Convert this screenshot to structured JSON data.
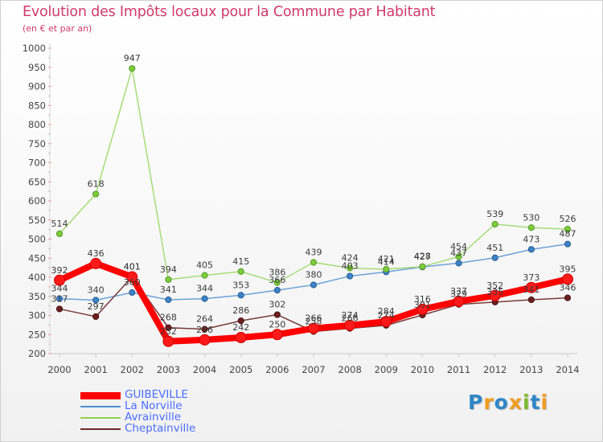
{
  "header": {
    "title": "Evolution des Impôts locaux pour la Commune par Habitant",
    "subtitle": "(en € et par an)"
  },
  "logo": {
    "text": "Proxiti",
    "letters": [
      {
        "ch": "P",
        "color": "#2e86c8"
      },
      {
        "ch": "r",
        "color": "#f29b1e"
      },
      {
        "ch": "o",
        "color": "#2e86c8"
      },
      {
        "ch": "x",
        "color": "#f29b1e"
      },
      {
        "ch": "i",
        "color": "#7dbb2d"
      },
      {
        "ch": "t",
        "color": "#2e86c8"
      },
      {
        "ch": "i",
        "color": "#f29b1e"
      }
    ]
  },
  "chart_data": {
    "type": "line",
    "title": "Evolution des Impôts locaux pour la Commune par Habitant",
    "subtitle": "(en € et par an)",
    "xlabel": "",
    "ylabel": "",
    "ylim": [
      200,
      1000
    ],
    "yticks": [
      200,
      250,
      300,
      350,
      400,
      450,
      500,
      550,
      600,
      650,
      700,
      750,
      800,
      850,
      900,
      950,
      1000
    ],
    "grid": false,
    "legend_position": "bottom-left",
    "x": [
      "2000",
      "2001",
      "2002",
      "2003",
      "2004",
      "2005",
      "2006",
      "2007",
      "2008",
      "2009",
      "2010",
      "2011",
      "2012",
      "2013",
      "2014"
    ],
    "series": [
      {
        "name": "GUIBEVILLE",
        "color": "#ff0000",
        "values": [
          392,
          436,
          401,
          232,
          236,
          242,
          250,
          266,
          274,
          284,
          316,
          337,
          352,
          373,
          395
        ]
      },
      {
        "name": "La Norville",
        "color": "#4d8fcc",
        "values": [
          344,
          340,
          360,
          341,
          344,
          353,
          366,
          380,
          403,
          414,
          427,
          437,
          451,
          473,
          487
        ]
      },
      {
        "name": "Avrainville",
        "color": "#92d050",
        "values": [
          514,
          618,
          947,
          394,
          405,
          415,
          386,
          439,
          424,
          421,
          428,
          454,
          539,
          530,
          526
        ]
      },
      {
        "name": "Cheptainville",
        "color": "#6b2a2a",
        "values": [
          317,
          297,
          401,
          268,
          264,
          286,
          302,
          258,
          266,
          274,
          301,
          329,
          335,
          341,
          346
        ]
      }
    ]
  }
}
